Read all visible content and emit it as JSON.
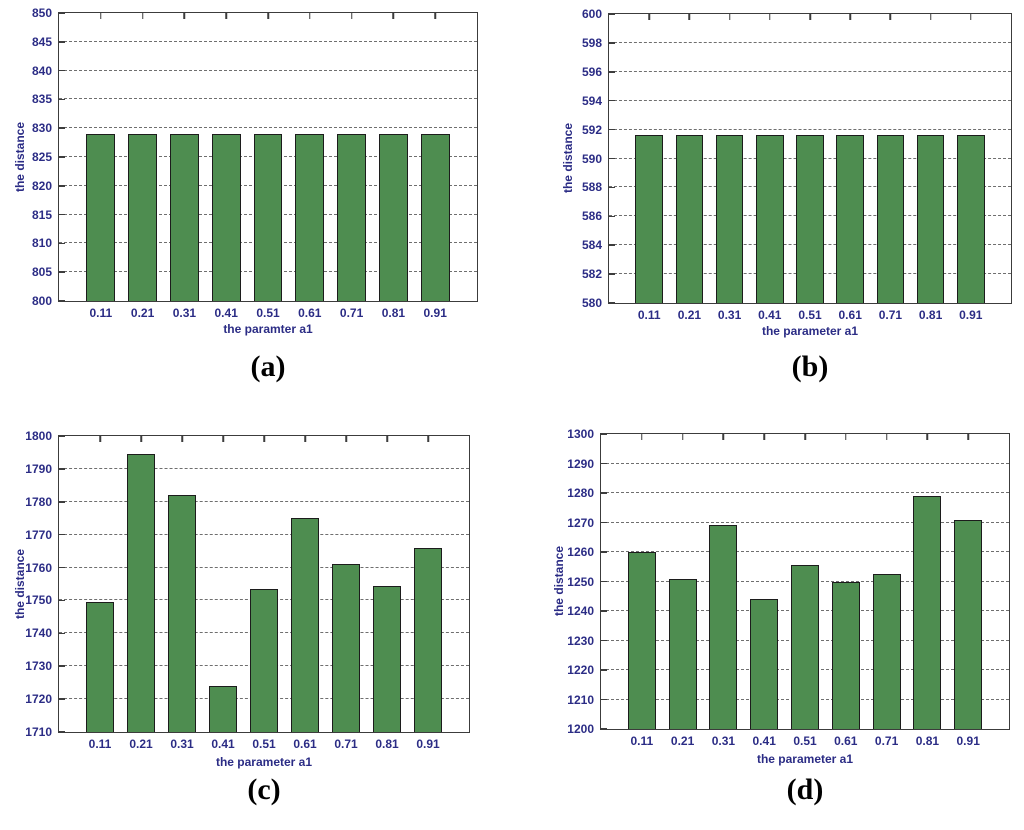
{
  "styles": {
    "background": "#ffffff",
    "bar_fill": "#4e8d50",
    "bar_edge": "#1c1c1c",
    "grid_color": "#6f6f6f",
    "box_color": "#3c3c3c",
    "tick_text_color": "#2b2c85",
    "caption_color": "#000000"
  },
  "chart_data": [
    {
      "type": "bar",
      "panel": "a",
      "caption": "(a)",
      "xlabel": "the paramter a1",
      "ylabel": "the distance",
      "categories": [
        "0.11",
        "0.21",
        "0.31",
        "0.41",
        "0.51",
        "0.61",
        "0.71",
        "0.81",
        "0.91"
      ],
      "values": [
        829,
        829,
        829,
        829,
        829,
        829,
        829,
        829,
        829
      ],
      "ylim": [
        800,
        850
      ],
      "ytick_step": 5,
      "grid": true,
      "legend": "none"
    },
    {
      "type": "bar",
      "panel": "b",
      "caption": "(b)",
      "xlabel": "the parameter a1",
      "ylabel": "the distance",
      "categories": [
        "0.11",
        "0.21",
        "0.31",
        "0.41",
        "0.51",
        "0.61",
        "0.71",
        "0.81",
        "0.91"
      ],
      "values": [
        591.6,
        591.6,
        591.6,
        591.6,
        591.6,
        591.6,
        591.6,
        591.6,
        591.6
      ],
      "ylim": [
        580,
        600
      ],
      "ytick_step": 2,
      "grid": true,
      "legend": "none"
    },
    {
      "type": "bar",
      "panel": "c",
      "caption": "(c)",
      "xlabel": "the parameter a1",
      "ylabel": "the distance",
      "categories": [
        "0.11",
        "0.21",
        "0.31",
        "0.41",
        "0.51",
        "0.61",
        "0.71",
        "0.81",
        "0.91"
      ],
      "values": [
        1749.5,
        1794.5,
        1782,
        1724,
        1753.5,
        1775,
        1761,
        1754.5,
        1766
      ],
      "ylim": [
        1710,
        1800
      ],
      "ytick_step": 10,
      "grid": true,
      "legend": "none"
    },
    {
      "type": "bar",
      "panel": "d",
      "caption": "(d)",
      "xlabel": "the parameter a1",
      "ylabel": "the distance",
      "categories": [
        "0.11",
        "0.21",
        "0.31",
        "0.41",
        "0.51",
        "0.61",
        "0.71",
        "0.81",
        "0.91"
      ],
      "values": [
        1260,
        1251,
        1269,
        1244,
        1255.5,
        1250,
        1252.5,
        1279,
        1271
      ],
      "ylim": [
        1200,
        1300
      ],
      "ytick_step": 10,
      "grid": true,
      "legend": "none"
    }
  ]
}
